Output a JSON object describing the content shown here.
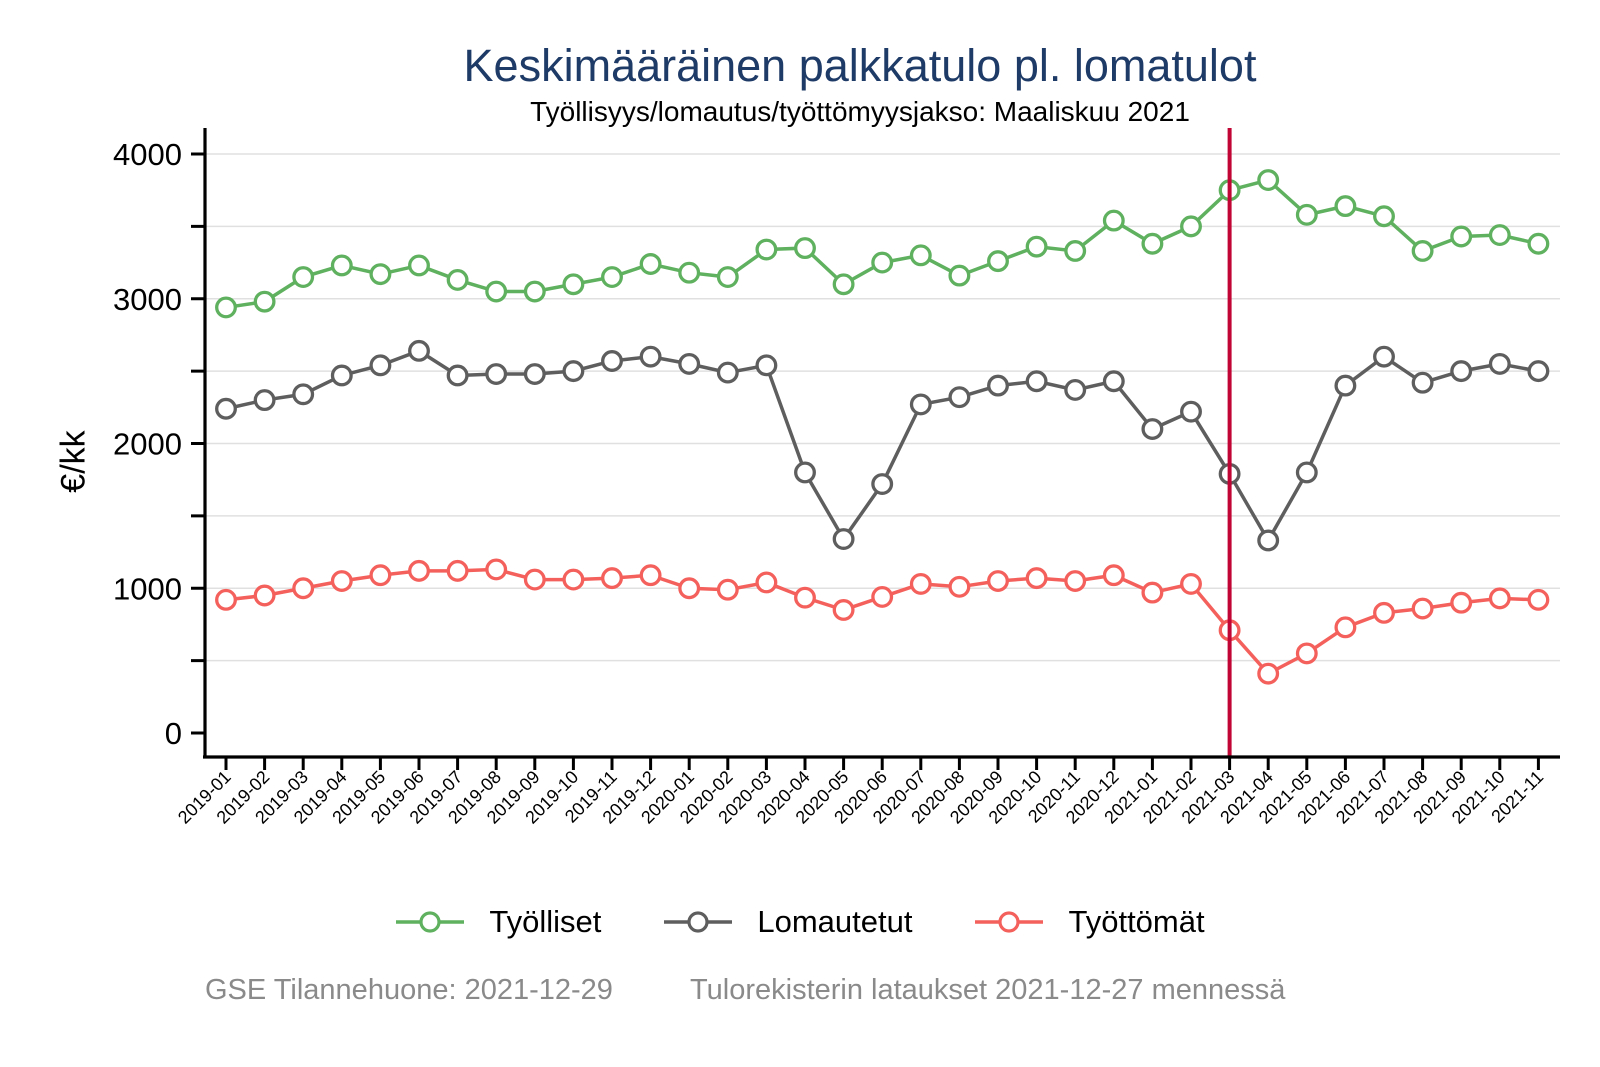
{
  "chart": {
    "title": "Keskimääräinen palkkatulo pl. lomatulot",
    "subtitle": "Työllisyys/lomautus/työttömyysjakso: Maaliskuu 2021",
    "ylabel": "€/kk",
    "title_color": "#1E3A66"
  },
  "footer": {
    "left": "GSE Tilannehuone: 2021-12-29",
    "right": "Tulorekisterin lataukset 2021-12-27 mennessä"
  },
  "chart_data": {
    "type": "line",
    "x": [
      "2019-01",
      "2019-02",
      "2019-03",
      "2019-04",
      "2019-05",
      "2019-06",
      "2019-07",
      "2019-08",
      "2019-09",
      "2019-10",
      "2019-11",
      "2019-12",
      "2020-01",
      "2020-02",
      "2020-03",
      "2020-04",
      "2020-05",
      "2020-06",
      "2020-07",
      "2020-08",
      "2020-09",
      "2020-10",
      "2020-11",
      "2020-12",
      "2021-01",
      "2021-02",
      "2021-03",
      "2021-04",
      "2021-05",
      "2021-06",
      "2021-07",
      "2021-08",
      "2021-09",
      "2021-10",
      "2021-11"
    ],
    "series": [
      {
        "name": "Työlliset",
        "color": "#5FB05F",
        "values": [
          2940,
          2980,
          3150,
          3230,
          3170,
          3230,
          3130,
          3050,
          3050,
          3100,
          3150,
          3240,
          3180,
          3150,
          3340,
          3350,
          3100,
          3250,
          3300,
          3160,
          3260,
          3360,
          3330,
          3540,
          3380,
          3500,
          3750,
          3820,
          3580,
          3640,
          3570,
          3330,
          3430,
          3440,
          3380
        ]
      },
      {
        "name": "Lomautetut",
        "color": "#5E5E5E",
        "values": [
          2240,
          2300,
          2340,
          2470,
          2540,
          2640,
          2470,
          2480,
          2480,
          2500,
          2570,
          2600,
          2550,
          2490,
          2540,
          1800,
          1340,
          1720,
          2270,
          2320,
          2400,
          2430,
          2370,
          2430,
          2100,
          2220,
          1790,
          1330,
          1800,
          2400,
          2600,
          2420,
          2500,
          2550,
          2500
        ]
      },
      {
        "name": "Työttömät",
        "color": "#F4615C",
        "values": [
          920,
          950,
          1000,
          1050,
          1090,
          1120,
          1120,
          1130,
          1060,
          1060,
          1070,
          1090,
          1000,
          990,
          1040,
          935,
          850,
          940,
          1030,
          1010,
          1050,
          1070,
          1050,
          1090,
          970,
          1030,
          710,
          410,
          550,
          730,
          830,
          860,
          900,
          930,
          920
        ]
      }
    ],
    "ylim": [
      0,
      4000
    ],
    "yticks": [
      0,
      1000,
      2000,
      3000,
      4000
    ],
    "yminor": [
      500,
      1500,
      2500,
      3500
    ],
    "grid": true,
    "gridline_color": "#E0E0E0",
    "marker": "circle",
    "legend_position": "bottom",
    "vline": {
      "x": "2021-03",
      "color": "#C10534"
    }
  }
}
